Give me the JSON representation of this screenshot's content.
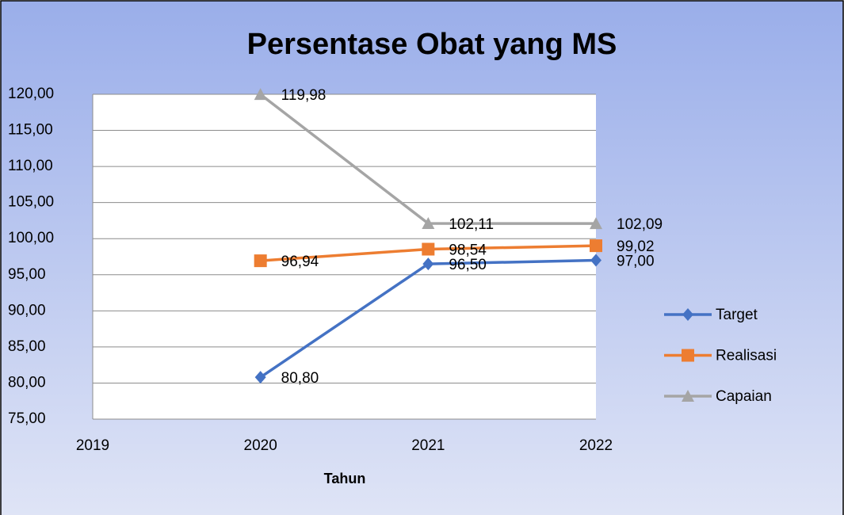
{
  "chart_data": {
    "type": "line",
    "title": "Persentase Obat yang MS",
    "x_label": "Tahun",
    "x": [
      2020,
      2021,
      2022
    ],
    "xlim": [
      2019,
      2022
    ],
    "xticks": [
      2019,
      2020,
      2021,
      2022
    ],
    "ylim": [
      75,
      120
    ],
    "yticks": [
      {
        "value": 75,
        "label": "75,00"
      },
      {
        "value": 80,
        "label": "80,00"
      },
      {
        "value": 85,
        "label": "85,00"
      },
      {
        "value": 90,
        "label": "90,00"
      },
      {
        "value": 95,
        "label": "95,00"
      },
      {
        "value": 100,
        "label": "100,00"
      },
      {
        "value": 105,
        "label": "105,00"
      },
      {
        "value": 110,
        "label": "110,00"
      },
      {
        "value": 115,
        "label": "115,00"
      },
      {
        "value": 120,
        "label": "120,00"
      }
    ],
    "grid": true,
    "legend": "right",
    "series": [
      {
        "name": "Target",
        "color": "#4472c4",
        "marker": "diamond",
        "values": [
          80.8,
          96.5,
          97.0
        ],
        "value_labels": [
          "80,80",
          "96,50",
          "97,00"
        ]
      },
      {
        "name": "Realisasi",
        "color": "#ed7d31",
        "marker": "square",
        "values": [
          96.94,
          98.54,
          99.02
        ],
        "value_labels": [
          "96,94",
          "98,54",
          "99,02"
        ]
      },
      {
        "name": "Capaian",
        "color": "#a5a5a5",
        "marker": "triangle",
        "values": [
          119.98,
          102.11,
          102.09
        ],
        "value_labels": [
          "119,98",
          "102,11",
          "102,09"
        ]
      }
    ]
  }
}
